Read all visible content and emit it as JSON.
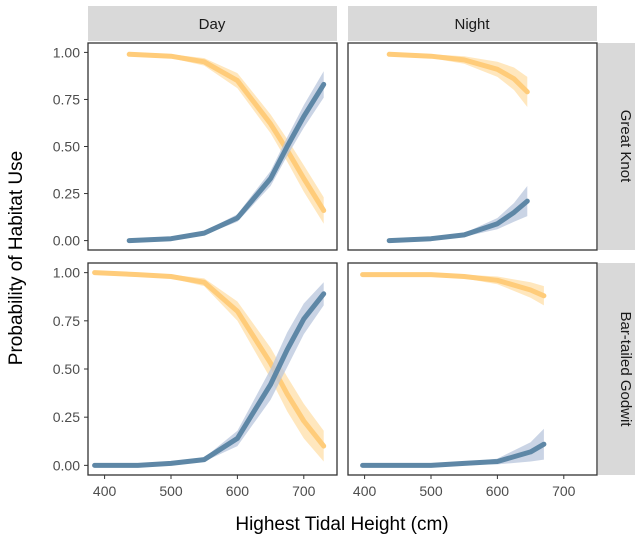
{
  "chart_data": {
    "type": "line",
    "xlabel": "Highest Tidal Height (cm)",
    "ylabel": "Probability of Habitat Use",
    "xlim": [
      375,
      750
    ],
    "ylim": [
      -0.05,
      1.05
    ],
    "x_ticks": [
      400,
      500,
      600,
      700
    ],
    "y_ticks": [
      "0.00",
      "0.25",
      "0.50",
      "0.75",
      "1.00"
    ],
    "column_facets": [
      "Day",
      "Night"
    ],
    "row_facets": [
      "Great Knot",
      "Bar-tailed Godwit"
    ],
    "grid": false,
    "colors": {
      "orange_series": "#ffcc7a",
      "blue_series": "#5e87a6",
      "strip_bg": "#d9d9d9",
      "panel_border": "#333333"
    },
    "panels": [
      {
        "row": "Great Knot",
        "col": "Day",
        "series": [
          {
            "color": "orange",
            "x": [
              437,
              500,
              550,
              600,
              650,
              675,
              700,
              730
            ],
            "y": [
              0.99,
              0.98,
              0.95,
              0.85,
              0.62,
              0.48,
              0.33,
              0.16
            ],
            "band": [
              0.01,
              0.01,
              0.02,
              0.04,
              0.05,
              0.06,
              0.07,
              0.07
            ]
          },
          {
            "color": "blue",
            "x": [
              437,
              500,
              550,
              600,
              650,
              675,
              700,
              730
            ],
            "y": [
              0.0,
              0.01,
              0.04,
              0.12,
              0.33,
              0.5,
              0.66,
              0.83
            ],
            "band": [
              0.0,
              0.005,
              0.01,
              0.02,
              0.04,
              0.05,
              0.06,
              0.07
            ]
          }
        ]
      },
      {
        "row": "Great Knot",
        "col": "Night",
        "series": [
          {
            "color": "orange",
            "x": [
              437,
              500,
              550,
              600,
              625,
              645
            ],
            "y": [
              0.99,
              0.98,
              0.96,
              0.91,
              0.86,
              0.79
            ],
            "band": [
              0.01,
              0.01,
              0.02,
              0.04,
              0.06,
              0.08
            ]
          },
          {
            "color": "blue",
            "x": [
              437,
              500,
              550,
              600,
              625,
              645
            ],
            "y": [
              0.0,
              0.01,
              0.03,
              0.09,
              0.15,
              0.21
            ],
            "band": [
              0.0,
              0.005,
              0.01,
              0.03,
              0.05,
              0.08
            ]
          }
        ]
      },
      {
        "row": "Bar-tailed Godwit",
        "col": "Day",
        "series": [
          {
            "color": "orange",
            "x": [
              385,
              450,
              500,
              550,
              600,
              650,
              675,
              700,
              730
            ],
            "y": [
              1.0,
              0.99,
              0.98,
              0.95,
              0.8,
              0.53,
              0.37,
              0.23,
              0.1
            ],
            "band": [
              0.005,
              0.005,
              0.01,
              0.02,
              0.05,
              0.08,
              0.09,
              0.09,
              0.08
            ]
          },
          {
            "color": "blue",
            "x": [
              385,
              450,
              500,
              550,
              600,
              650,
              675,
              700,
              730
            ],
            "y": [
              0.0,
              0.0,
              0.01,
              0.03,
              0.14,
              0.42,
              0.6,
              0.76,
              0.89
            ],
            "band": [
              0.0,
              0.0,
              0.005,
              0.01,
              0.04,
              0.08,
              0.09,
              0.08,
              0.06
            ]
          }
        ]
      },
      {
        "row": "Bar-tailed Godwit",
        "col": "Night",
        "series": [
          {
            "color": "orange",
            "x": [
              397,
              450,
              500,
              550,
              600,
              650,
              670
            ],
            "y": [
              0.99,
              0.99,
              0.99,
              0.98,
              0.96,
              0.91,
              0.88
            ],
            "band": [
              0.005,
              0.005,
              0.005,
              0.01,
              0.02,
              0.04,
              0.05
            ]
          },
          {
            "color": "blue",
            "x": [
              397,
              450,
              500,
              550,
              600,
              650,
              670
            ],
            "y": [
              0.0,
              0.0,
              0.0,
              0.01,
              0.02,
              0.07,
              0.11
            ],
            "band": [
              0.0,
              0.0,
              0.0,
              0.005,
              0.015,
              0.05,
              0.08
            ]
          }
        ]
      }
    ]
  }
}
